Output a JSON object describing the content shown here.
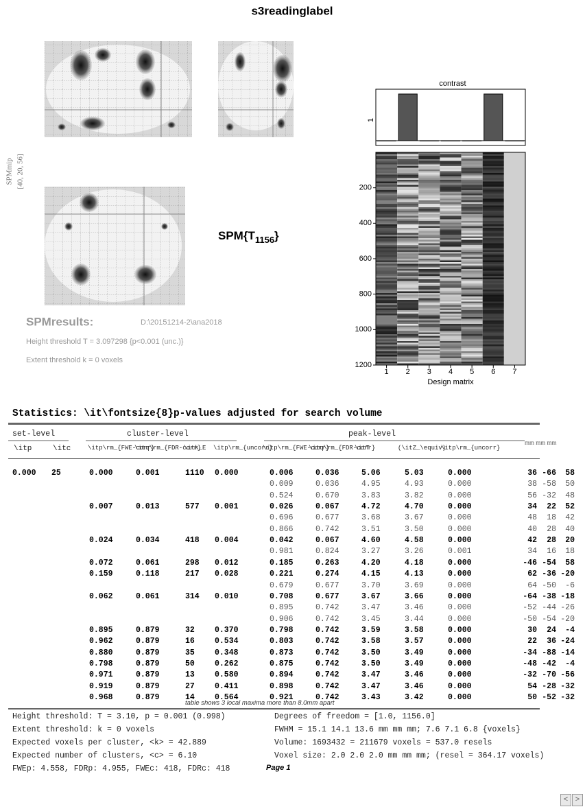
{
  "title": "s3readinglabel",
  "mip": {
    "label": "SPMmip",
    "coords": "[40, 20, 56]"
  },
  "stat": {
    "prefix": "SPM{T",
    "df": "1156",
    "suffix": "}"
  },
  "results": {
    "label": "SPMresults:",
    "path": "D:\\20151214-2\\ana2018",
    "height": "Height threshold T = 3.097298  {p<0.001 (unc.)}",
    "extent": "Extent threshold k = 0 voxels"
  },
  "contrast": {
    "title": "contrast",
    "values": [
      0,
      1,
      0,
      0,
      0,
      1,
      0
    ],
    "ytick": 1
  },
  "design": {
    "xlabel": "Design matrix",
    "ylim": [
      0,
      1200
    ],
    "yticks": [
      200,
      400,
      600,
      800,
      1000,
      1200
    ],
    "xticks": [
      1,
      2,
      3,
      4,
      5,
      6,
      7
    ]
  },
  "table": {
    "heading": "Statistics:  \\it\\fontsize{8}p-values adjusted for search volume",
    "groups": [
      "set-level",
      "cluster-level",
      "peak-level",
      "mm mm mm"
    ],
    "subheaders": {
      "set": [
        "\\itp",
        "\\itc"
      ],
      "cluster": [
        "\\itp\\rm_{FWE-corr}",
        "\\itq\\rm_{FDR-corr}",
        "\\itk_E",
        "\\itp\\rm_{uncorr}"
      ],
      "peak": [
        "\\itp\\rm_{FWE-corr}",
        "\\itq\\rm_{FDR-corr}",
        "\\itT",
        "(\\itZ_\\equiv)",
        "\\itp\\rm_{uncorr}"
      ]
    },
    "rows": [
      {
        "set": [
          "0.000",
          "25"
        ],
        "cluster": [
          "0.000",
          "0.001",
          "1110",
          "0.000"
        ],
        "peak": [
          "0.006",
          "0.036",
          "5.06",
          "5.03",
          "0.000"
        ],
        "xyz": [
          "36",
          "-66",
          "58"
        ]
      },
      {
        "peak": [
          "0.009",
          "0.036",
          "4.95",
          "4.93",
          "0.000"
        ],
        "xyz": [
          "38",
          "-58",
          "50"
        ]
      },
      {
        "peak": [
          "0.524",
          "0.670",
          "3.83",
          "3.82",
          "0.000"
        ],
        "xyz": [
          "56",
          "-32",
          "48"
        ]
      },
      {
        "cluster": [
          "0.007",
          "0.013",
          "577",
          "0.001"
        ],
        "peak": [
          "0.026",
          "0.067",
          "4.72",
          "4.70",
          "0.000"
        ],
        "xyz": [
          "34",
          "22",
          "52"
        ]
      },
      {
        "peak": [
          "0.696",
          "0.677",
          "3.68",
          "3.67",
          "0.000"
        ],
        "xyz": [
          "48",
          "18",
          "42"
        ]
      },
      {
        "peak": [
          "0.866",
          "0.742",
          "3.51",
          "3.50",
          "0.000"
        ],
        "xyz": [
          "40",
          "28",
          "40"
        ]
      },
      {
        "cluster": [
          "0.024",
          "0.034",
          "418",
          "0.004"
        ],
        "peak": [
          "0.042",
          "0.067",
          "4.60",
          "4.58",
          "0.000"
        ],
        "xyz": [
          "42",
          "28",
          "20"
        ]
      },
      {
        "peak": [
          "0.981",
          "0.824",
          "3.27",
          "3.26",
          "0.001"
        ],
        "xyz": [
          "34",
          "16",
          "18"
        ]
      },
      {
        "cluster": [
          "0.072",
          "0.061",
          "298",
          "0.012"
        ],
        "peak": [
          "0.185",
          "0.263",
          "4.20",
          "4.18",
          "0.000"
        ],
        "xyz": [
          "-46",
          "-54",
          "58"
        ]
      },
      {
        "cluster": [
          "0.159",
          "0.118",
          "217",
          "0.028"
        ],
        "peak": [
          "0.221",
          "0.274",
          "4.15",
          "4.13",
          "0.000"
        ],
        "xyz": [
          "62",
          "-36",
          "-20"
        ]
      },
      {
        "peak": [
          "0.679",
          "0.677",
          "3.70",
          "3.69",
          "0.000"
        ],
        "xyz": [
          "64",
          "-50",
          "-6"
        ]
      },
      {
        "cluster": [
          "0.062",
          "0.061",
          "314",
          "0.010"
        ],
        "peak": [
          "0.708",
          "0.677",
          "3.67",
          "3.66",
          "0.000"
        ],
        "xyz": [
          "-64",
          "-38",
          "-18"
        ]
      },
      {
        "peak": [
          "0.895",
          "0.742",
          "3.47",
          "3.46",
          "0.000"
        ],
        "xyz": [
          "-52",
          "-44",
          "-26"
        ]
      },
      {
        "peak": [
          "0.906",
          "0.742",
          "3.45",
          "3.44",
          "0.000"
        ],
        "xyz": [
          "-50",
          "-54",
          "-20"
        ]
      },
      {
        "cluster": [
          "0.895",
          "0.879",
          "32",
          "0.370"
        ],
        "peak": [
          "0.798",
          "0.742",
          "3.59",
          "3.58",
          "0.000"
        ],
        "xyz": [
          "30",
          "24",
          "-4"
        ]
      },
      {
        "cluster": [
          "0.962",
          "0.879",
          "16",
          "0.534"
        ],
        "peak": [
          "0.803",
          "0.742",
          "3.58",
          "3.57",
          "0.000"
        ],
        "xyz": [
          "22",
          "36",
          "-24"
        ]
      },
      {
        "cluster": [
          "0.880",
          "0.879",
          "35",
          "0.348"
        ],
        "peak": [
          "0.873",
          "0.742",
          "3.50",
          "3.49",
          "0.000"
        ],
        "xyz": [
          "-34",
          "-88",
          "-14"
        ]
      },
      {
        "cluster": [
          "0.798",
          "0.879",
          "50",
          "0.262"
        ],
        "peak": [
          "0.875",
          "0.742",
          "3.50",
          "3.49",
          "0.000"
        ],
        "xyz": [
          "-48",
          "-42",
          "-4"
        ]
      },
      {
        "cluster": [
          "0.971",
          "0.879",
          "13",
          "0.580"
        ],
        "peak": [
          "0.894",
          "0.742",
          "3.47",
          "3.46",
          "0.000"
        ],
        "xyz": [
          "-32",
          "-70",
          "-56"
        ]
      },
      {
        "cluster": [
          "0.919",
          "0.879",
          "27",
          "0.411"
        ],
        "peak": [
          "0.898",
          "0.742",
          "3.47",
          "3.46",
          "0.000"
        ],
        "xyz": [
          "54",
          "-28",
          "-32"
        ]
      },
      {
        "cluster": [
          "0.968",
          "0.879",
          "14",
          "0.564"
        ],
        "peak": [
          "0.921",
          "0.742",
          "3.43",
          "3.42",
          "0.000"
        ],
        "xyz": [
          "50",
          "-52",
          "-32"
        ]
      }
    ],
    "note": "table shows 3 local maxima more than 8.0mm apart"
  },
  "footer": {
    "left": [
      "Height threshold: T = 3.10, p = 0.001 (0.998)",
      "Extent threshold: k = 0 voxels",
      "Expected voxels per cluster, <k> = 42.889",
      "Expected number of clusters, <c> = 6.10",
      "FWEp: 4.558, FDRp: 4.955, FWEc: 418, FDRc: 418"
    ],
    "right": [
      "Degrees of freedom = [1.0, 1156.0]",
      "FWHM = 15.1 14.1 13.6 mm mm mm; 7.6 7.1 6.8 {voxels}",
      "Volume: 1693432 = 211679 voxels = 537.0 resels",
      "Voxel size: 2.0 2.0 2.0 mm mm mm; (resel = 364.17 voxels)"
    ],
    "page": "Page 1",
    "prev": "<",
    "next": ">"
  }
}
